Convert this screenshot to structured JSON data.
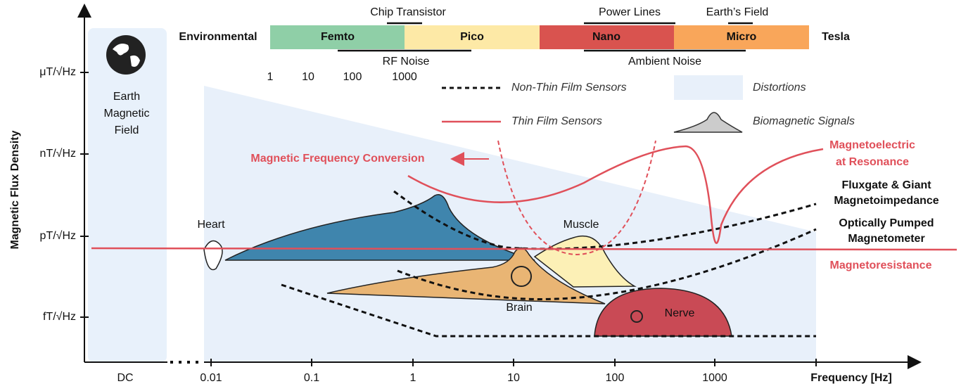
{
  "axes": {
    "y_title": "Magnetic Flux Density",
    "y_labels": [
      "μT/√Hz",
      "nT/√Hz",
      "pT/√Hz",
      "fT/√Hz"
    ],
    "x_title": "Frequency [Hz]",
    "x_labels": [
      "DC",
      "0.01",
      "0.1",
      "1",
      "10",
      "100",
      "1000"
    ]
  },
  "spectrum": {
    "left_label": "Environmental",
    "right_label": "Tesla",
    "segments": [
      "Femto",
      "Pico",
      "Nano",
      "Micro"
    ],
    "above": [
      "Chip Transistor",
      "Power Lines",
      "Earth’s Field"
    ],
    "below": [
      "RF Noise",
      "Ambient Noise"
    ],
    "scale": [
      "1",
      "10",
      "100",
      "1000"
    ]
  },
  "legend": [
    "Non-Thin Film Sensors",
    "Thin Film Sensors",
    "Distortions",
    "Biomagnetic Signals"
  ],
  "earth_field": [
    "Earth",
    "Magnetic",
    "Field"
  ],
  "conversion": "Magnetic Frequency Conversion",
  "sensors": {
    "magnetoelectric": [
      "Magnetoelectric",
      "at Resonance"
    ],
    "fluxgate": [
      "Fluxgate & Giant",
      "Magnetoimpedance"
    ],
    "optical": [
      "Optically Pumped",
      "Magnetometer"
    ],
    "magnetoresistance": "Magnetoresistance"
  },
  "signals": [
    "Heart",
    "Muscle",
    "Brain",
    "Nerve"
  ]
}
